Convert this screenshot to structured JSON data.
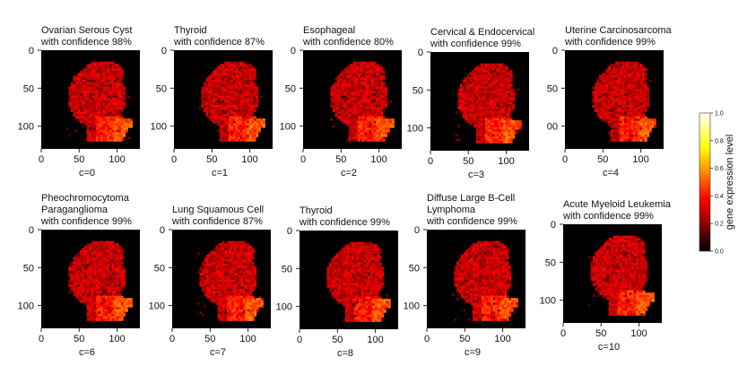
{
  "chart_data": {
    "type": "heatmap",
    "colormap": "hot",
    "colorbar": {
      "label": "gene expression level",
      "ticks": [
        "0.0",
        "0.2",
        "0.4",
        "0.6",
        "0.8",
        "1.0"
      ],
      "range": [
        0.0,
        1.0
      ]
    },
    "panels": [
      {
        "title_lines": [
          "Ovarian Serous Cyst",
          "with confidence 98%"
        ],
        "xlabel": "c=0",
        "xticks": [
          "0",
          "50",
          "100"
        ],
        "yticks": [
          "0",
          "50",
          "100"
        ]
      },
      {
        "title_lines": [
          "Thyroid",
          "with confidence 87%"
        ],
        "xlabel": "c=1",
        "xticks": [
          "0",
          "50",
          "100"
        ],
        "yticks": [
          "0",
          "50",
          "100"
        ]
      },
      {
        "title_lines": [
          "Esophageal",
          "with confidence 80%"
        ],
        "xlabel": "c=2",
        "xticks": [
          "0",
          "50",
          "100"
        ],
        "yticks": [
          "0",
          "50",
          "100"
        ]
      },
      {
        "title_lines": [
          "Cervical & Endocervical",
          "with confidence 99%"
        ],
        "xlabel": "c=3",
        "xticks": [
          "0",
          "50",
          "100"
        ],
        "yticks": [
          "0",
          "50",
          "100"
        ]
      },
      {
        "title_lines": [
          "Uterine Carcinosarcoma",
          "with confidence 99%"
        ],
        "xlabel": "c=4",
        "xticks": [
          "0",
          "50",
          "100"
        ],
        "yticks": [
          "0",
          "50",
          "00"
        ]
      },
      {
        "title_lines": [
          "Pheochromocytoma",
          "Paraganglioma",
          "with confidence 99%"
        ],
        "xlabel": "c=6",
        "xticks": [
          "0",
          "50",
          "100"
        ],
        "yticks": [
          "0",
          "50",
          "100"
        ]
      },
      {
        "title_lines": [
          "Lung Squamous Cell",
          "with confidence 87%"
        ],
        "xlabel": "c=7",
        "xticks": [
          "0",
          "50",
          "100"
        ],
        "yticks": [
          "0",
          "50",
          "100"
        ]
      },
      {
        "title_lines": [
          "Thyroid",
          "with confidence 99%"
        ],
        "xlabel": "c=8",
        "xticks": [
          "0",
          "50",
          "100"
        ],
        "yticks": [
          "0",
          "50",
          "100"
        ]
      },
      {
        "title_lines": [
          "Diffuse Large B-Cell",
          "Lymphoma",
          "with confidence 99%"
        ],
        "xlabel": "c=9",
        "xticks": [
          "0",
          "50",
          "100"
        ],
        "yticks": [
          "0",
          "50",
          "100"
        ]
      },
      {
        "title_lines": [
          "Acute Myeloid Leukemia",
          "with confidence 99%"
        ],
        "xlabel": "c=10",
        "xticks": [
          "0",
          "50",
          "100"
        ],
        "yticks": [
          "0",
          "50",
          "100"
        ]
      }
    ]
  }
}
